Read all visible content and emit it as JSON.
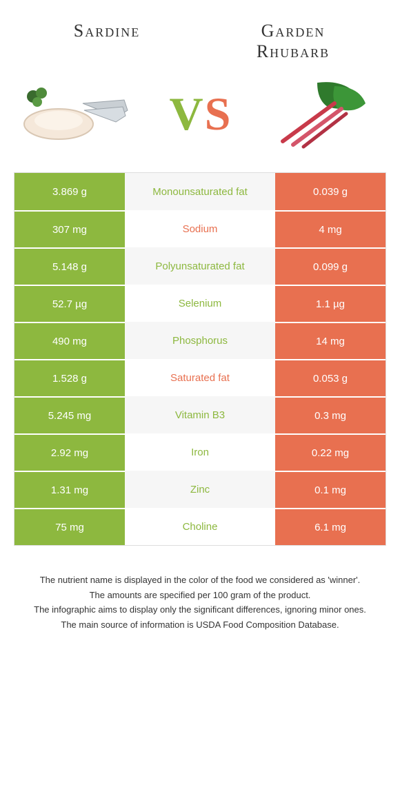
{
  "colors": {
    "left": "#8db83f",
    "right": "#e87050",
    "bg": "#ffffff",
    "border": "#dddddd",
    "text": "#333333"
  },
  "left": {
    "name": "Sardine"
  },
  "right": {
    "name": "Garden\nRhubarb"
  },
  "vs_text": "VS",
  "rows": [
    {
      "left": "3.869 g",
      "label": "Monounsaturated fat",
      "right": "0.039 g",
      "winner": "left"
    },
    {
      "left": "307 mg",
      "label": "Sodium",
      "right": "4 mg",
      "winner": "right"
    },
    {
      "left": "5.148 g",
      "label": "Polyunsaturated fat",
      "right": "0.099 g",
      "winner": "left"
    },
    {
      "left": "52.7 µg",
      "label": "Selenium",
      "right": "1.1 µg",
      "winner": "left"
    },
    {
      "left": "490 mg",
      "label": "Phosphorus",
      "right": "14 mg",
      "winner": "left"
    },
    {
      "left": "1.528 g",
      "label": "Saturated fat",
      "right": "0.053 g",
      "winner": "right"
    },
    {
      "left": "5.245 mg",
      "label": "Vitamin B3",
      "right": "0.3 mg",
      "winner": "left"
    },
    {
      "left": "2.92 mg",
      "label": "Iron",
      "right": "0.22 mg",
      "winner": "left"
    },
    {
      "left": "1.31 mg",
      "label": "Zinc",
      "right": "0.1 mg",
      "winner": "left"
    },
    {
      "left": "75 mg",
      "label": "Choline",
      "right": "6.1 mg",
      "winner": "left"
    }
  ],
  "footnotes": [
    "The nutrient name is displayed in the color of the food we considered as 'winner'.",
    "The amounts are specified per 100 gram of the product.",
    "The infographic aims to display only the significant differences, ignoring minor ones.",
    "The main source of information is USDA Food Composition Database."
  ]
}
